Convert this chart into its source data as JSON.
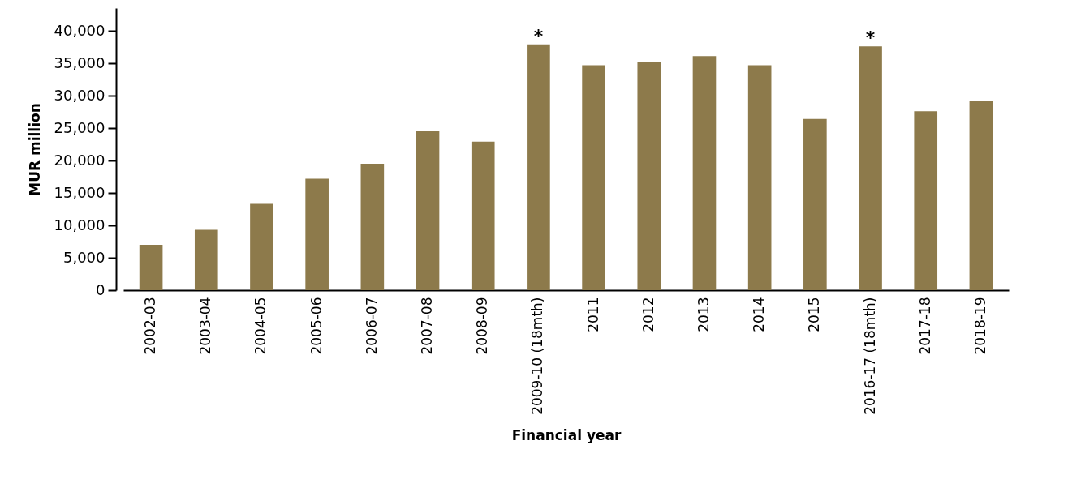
{
  "chart_data": {
    "type": "bar",
    "xlabel": "Financial year",
    "ylabel": "MUR million",
    "categories": [
      "2002-03",
      "2003-04",
      "2004-05",
      "2005-06",
      "2006-07",
      "2007-08",
      "2008-09",
      "2009-10 (18mth)",
      "2011",
      "2012",
      "2013",
      "2014",
      "2015",
      "2016-17 (18mth)",
      "2017-18",
      "2018-19"
    ],
    "values": [
      7000,
      9300,
      13300,
      17200,
      19500,
      24500,
      22900,
      37900,
      34700,
      35200,
      36100,
      34700,
      26400,
      37600,
      27600,
      29200
    ],
    "color": "#8d7a4b",
    "ylim": [
      0,
      43500
    ],
    "yticks": [
      {
        "value": 0,
        "label": "0"
      },
      {
        "value": 5000,
        "label": "5,000"
      },
      {
        "value": 10000,
        "label": "10,000"
      },
      {
        "value": 15000,
        "label": "15,000"
      },
      {
        "value": 20000,
        "label": "20,000"
      },
      {
        "value": 25000,
        "label": "25,000"
      },
      {
        "value": 30000,
        "label": "30,000"
      },
      {
        "value": 35000,
        "label": "35,000"
      },
      {
        "value": 40000,
        "label": "40,000"
      }
    ],
    "annotations": [
      {
        "text": "*",
        "x": "2009-10 (18mth)",
        "y": 37900
      },
      {
        "text": "*",
        "x": "2016-17 (18mth)",
        "y": 37600
      }
    ],
    "grid": false
  }
}
